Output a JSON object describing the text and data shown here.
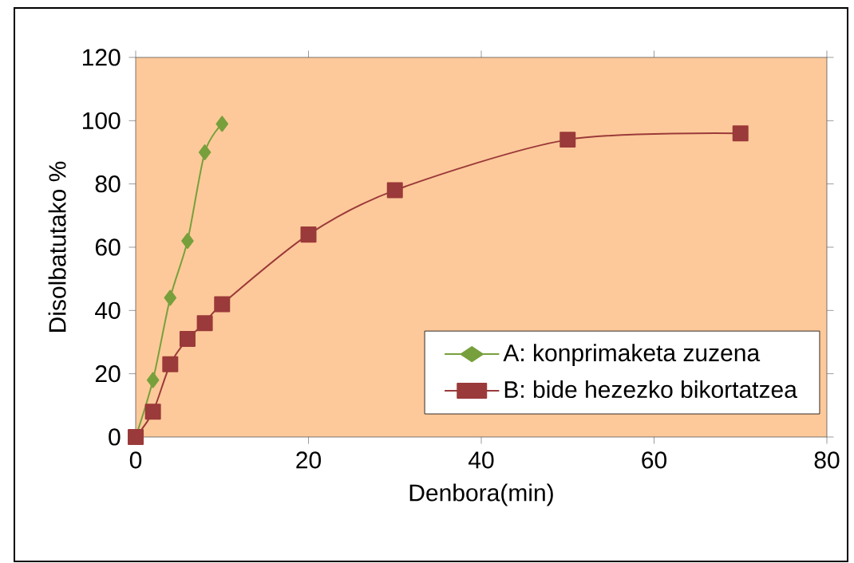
{
  "chart_data": {
    "type": "line",
    "xlabel": "Denbora(min)",
    "ylabel": "Disolbatutako %",
    "xlim": [
      0,
      80
    ],
    "xticks": [
      0,
      20,
      40,
      60,
      80
    ],
    "ylim": [
      0,
      120
    ],
    "yticks": [
      0,
      20,
      40,
      60,
      80,
      100,
      120
    ],
    "grid": false,
    "legend": "bottom right",
    "series": [
      {
        "name": "A: konprimaketa zuzena",
        "color": "#77a03c",
        "marker": "diamond",
        "x": [
          0,
          2,
          4,
          6,
          8,
          10
        ],
        "values": [
          0,
          18,
          44,
          62,
          90,
          99
        ]
      },
      {
        "name": "B: bide hezezko bikortatzea",
        "color": "#9b3a3a",
        "marker": "square",
        "x": [
          0,
          2,
          4,
          6,
          8,
          10,
          20,
          30,
          50,
          70
        ],
        "values": [
          0,
          8,
          23,
          31,
          36,
          42,
          64,
          78,
          94,
          96
        ]
      }
    ]
  }
}
